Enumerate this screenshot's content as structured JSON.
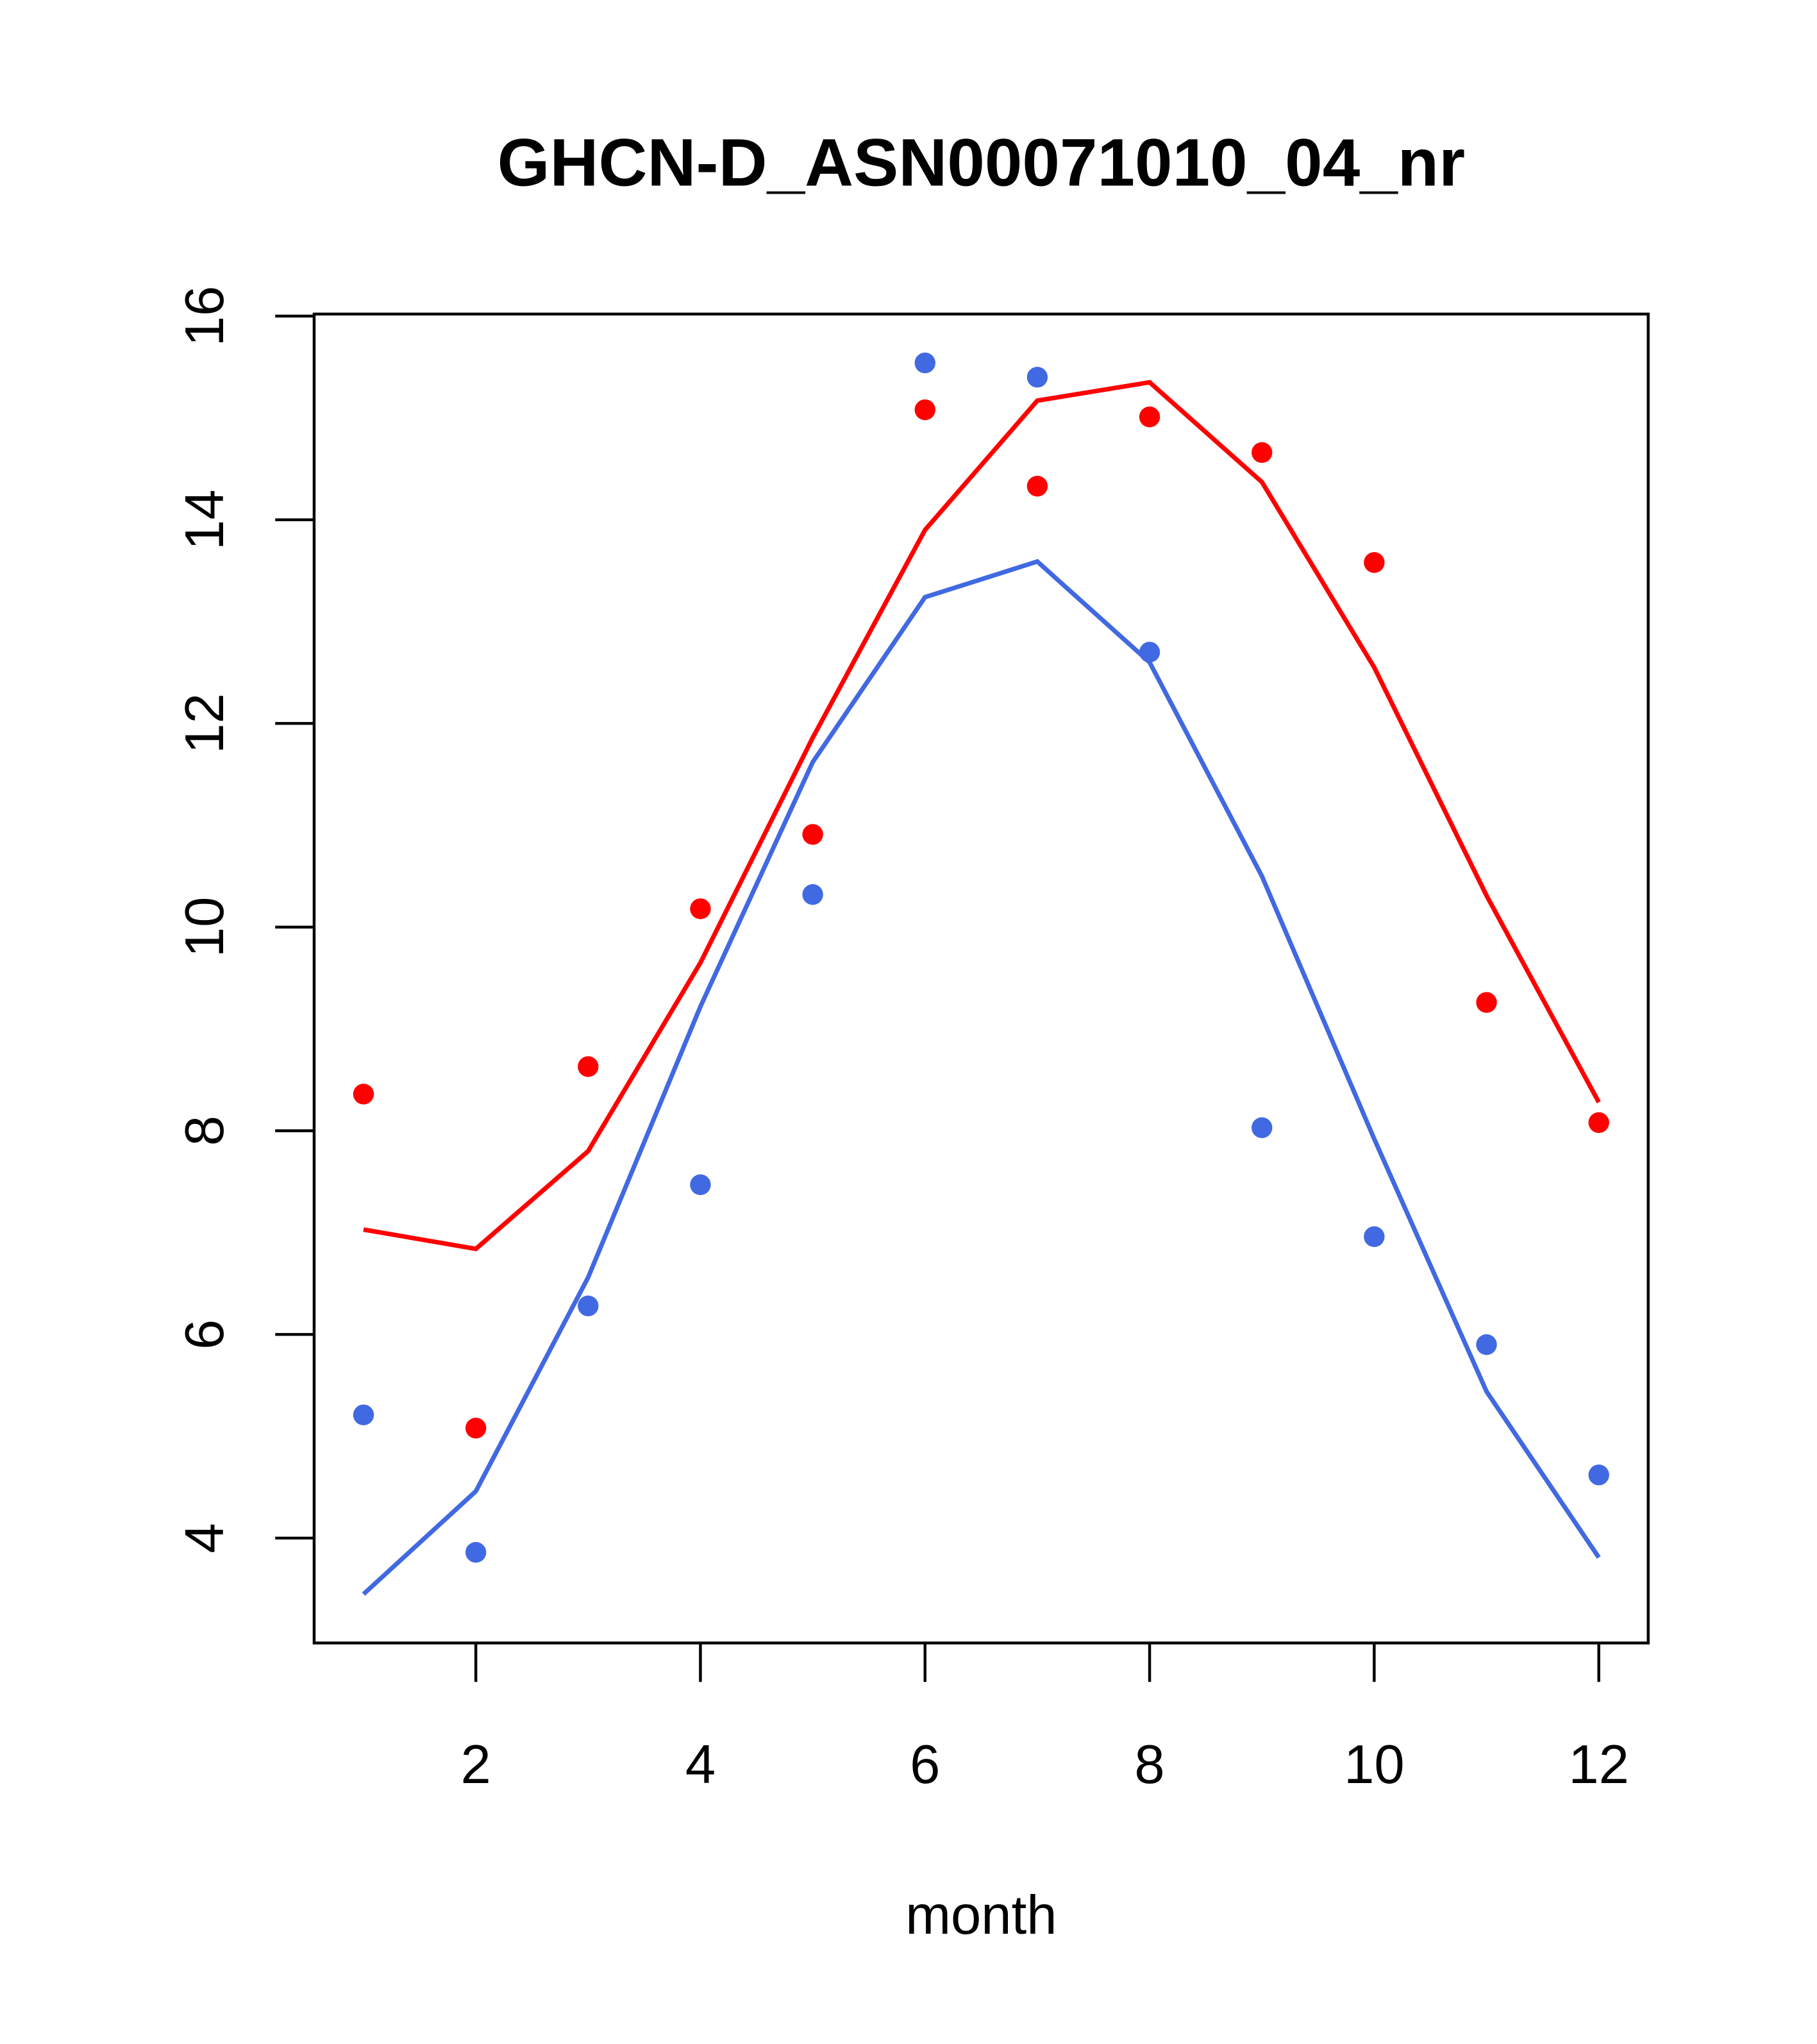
{
  "chart_data": {
    "type": "line",
    "title": "GHCN-D_ASN00071010_04_nr",
    "xlabel": "month",
    "ylabel": "",
    "xlim": [
      0.56,
      12.44
    ],
    "ylim": [
      2.97,
      16.02
    ],
    "xticks": [
      2,
      4,
      6,
      8,
      10,
      12
    ],
    "yticks": [
      4,
      6,
      8,
      10,
      12,
      14,
      16
    ],
    "grid": false,
    "x": [
      1,
      2,
      3,
      4,
      5,
      6,
      7,
      8,
      9,
      10,
      11,
      12
    ],
    "series": [
      {
        "name": "red points",
        "kind": "scatter",
        "color": "#ff0000",
        "values": [
          8.36,
          5.08,
          8.63,
          10.18,
          10.91,
          15.08,
          14.33,
          15.01,
          14.66,
          13.58,
          9.26,
          8.08
        ]
      },
      {
        "name": "red line",
        "kind": "line",
        "color": "#ff0000",
        "values": [
          7.03,
          6.84,
          7.8,
          9.65,
          11.86,
          13.9,
          15.17,
          15.35,
          14.37,
          12.55,
          10.31,
          8.28
        ]
      },
      {
        "name": "blue points",
        "kind": "scatter",
        "color": "#4169e1",
        "values": [
          5.21,
          3.86,
          6.28,
          7.47,
          10.32,
          15.54,
          15.4,
          12.7,
          8.03,
          6.96,
          5.9,
          4.62
        ]
      },
      {
        "name": "blue line",
        "kind": "line",
        "color": "#4169e1",
        "values": [
          3.45,
          4.46,
          6.56,
          9.22,
          11.62,
          13.24,
          13.59,
          12.6,
          10.5,
          7.92,
          5.44,
          3.81
        ]
      }
    ]
  }
}
